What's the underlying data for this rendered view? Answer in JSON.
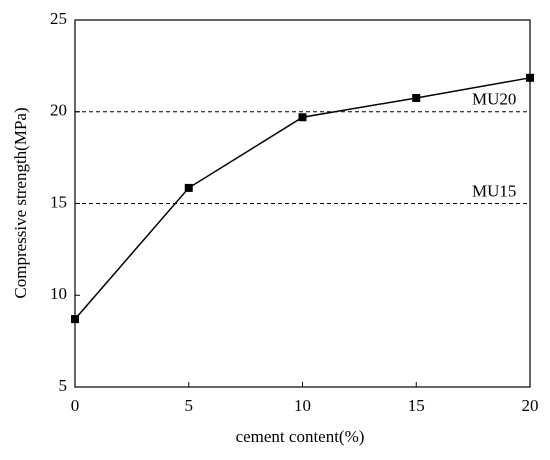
{
  "chart_data": {
    "type": "line",
    "x_label": "cement content(%)",
    "y_label": "Compressive strength(MPa)",
    "x": [
      0,
      5,
      10,
      15,
      20
    ],
    "series": [
      {
        "name": "Compressive strength",
        "color": "#000000",
        "values": [
          8.7,
          15.85,
          19.7,
          20.75,
          21.85
        ]
      }
    ],
    "xlim": [
      0,
      20
    ],
    "xticks": [
      0,
      5,
      10,
      15,
      20
    ],
    "ylim": [
      5,
      25
    ],
    "yticks": [
      5,
      10,
      15,
      20,
      25
    ],
    "reference_lines": [
      {
        "value": 20,
        "label": "MU20"
      },
      {
        "value": 15,
        "label": "MU15"
      }
    ],
    "legend": false,
    "grid": false
  }
}
